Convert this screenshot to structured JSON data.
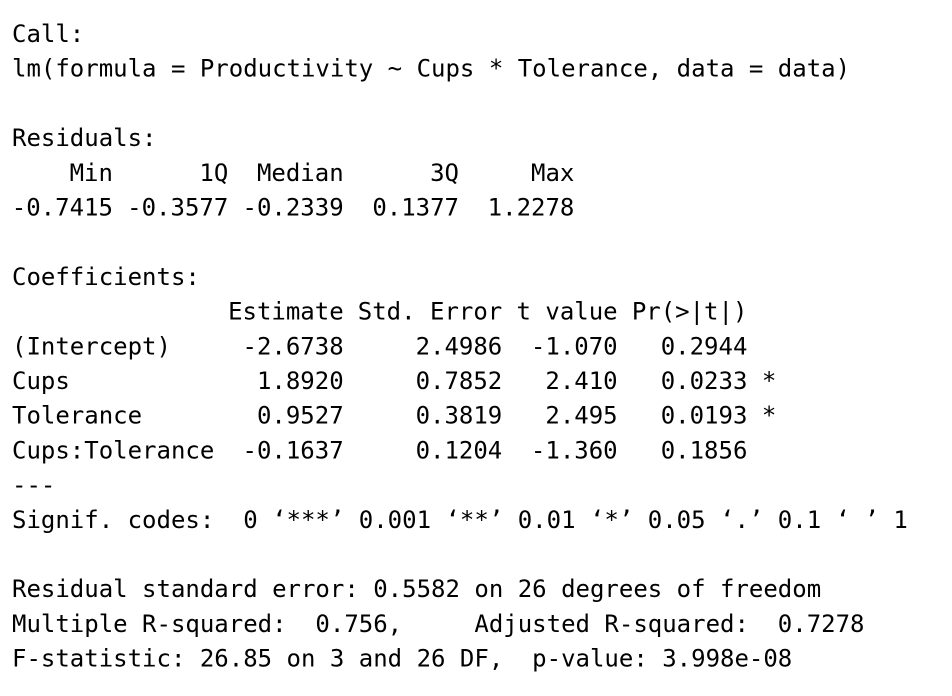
{
  "call": {
    "label": "Call:",
    "formula": "lm(formula = Productivity ~ Cups * Tolerance, data = data)"
  },
  "residuals": {
    "label": "Residuals:",
    "headers": [
      "Min",
      "1Q",
      "Median",
      "3Q",
      "Max"
    ],
    "values": [
      "-0.7415",
      "-0.3577",
      "-0.2339",
      "0.1377",
      "1.2278"
    ]
  },
  "coefficients": {
    "label": "Coefficients:",
    "headers": [
      "Estimate",
      "Std. Error",
      "t value",
      "Pr(>|t|)"
    ],
    "rows": [
      {
        "name": "(Intercept)",
        "cells": [
          "-2.6738",
          "2.4986",
          "-1.070",
          "0.2944"
        ]
      },
      {
        "name": "Cups",
        "cells": [
          "1.8920",
          "0.7852",
          "2.410",
          "0.0233"
        ],
        "signif": "*"
      },
      {
        "name": "Tolerance",
        "cells": [
          "0.9527",
          "0.3819",
          "2.495",
          "0.0193"
        ],
        "signif": "*"
      },
      {
        "name": "Cups:Tolerance",
        "cells": [
          "-0.1637",
          "0.1204",
          "-1.360",
          "0.1856"
        ]
      }
    ]
  },
  "separator": "---",
  "signif_codes": "Signif. codes:  0 ‘***’ 0.001 ‘**’ 0.01 ‘*’ 0.05 ‘.’ 0.1 ‘ ’ 1",
  "summary": [
    "Residual standard error: 0.5582 on 26 degrees of freedom",
    "Multiple R-squared:  0.756,     Adjusted R-squared:  0.7278",
    "F-statistic: 26.85 on 3 and 26 DF,  p-value: 3.998e-08"
  ]
}
